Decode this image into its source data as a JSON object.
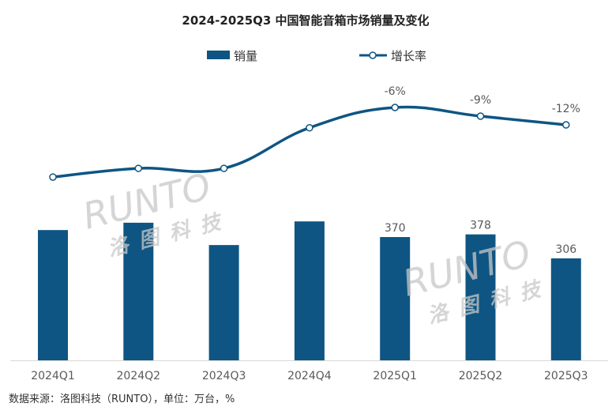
{
  "chart_data": {
    "type": "bar+line",
    "title": "2024-2025Q3 中国智能音箱市场销量及变化",
    "categories": [
      "2024Q1",
      "2024Q2",
      "2024Q3",
      "2024Q4",
      "2025Q1",
      "2025Q2",
      "2025Q3"
    ],
    "series": [
      {
        "name": "销量",
        "type": "bar",
        "color": "#0e5583",
        "values": [
          391,
          413,
          346,
          417,
          370,
          378,
          306
        ],
        "labels": [
          null,
          null,
          null,
          null,
          "370",
          "378",
          "306"
        ]
      },
      {
        "name": "增长率",
        "type": "line",
        "color": "#0e5583",
        "values": [
          -30,
          -27,
          -27,
          -13,
          -6,
          -9,
          -12
        ],
        "labels": [
          null,
          null,
          null,
          null,
          "-6%",
          "-9%",
          "-12%"
        ]
      }
    ],
    "xlabel": "",
    "ylabel": "",
    "grid": false,
    "legend": "top-center",
    "source": "数据来源：洛图科技（RUNTO），单位：万台，%",
    "watermark": [
      "RUNTO",
      "洛图科技"
    ]
  }
}
